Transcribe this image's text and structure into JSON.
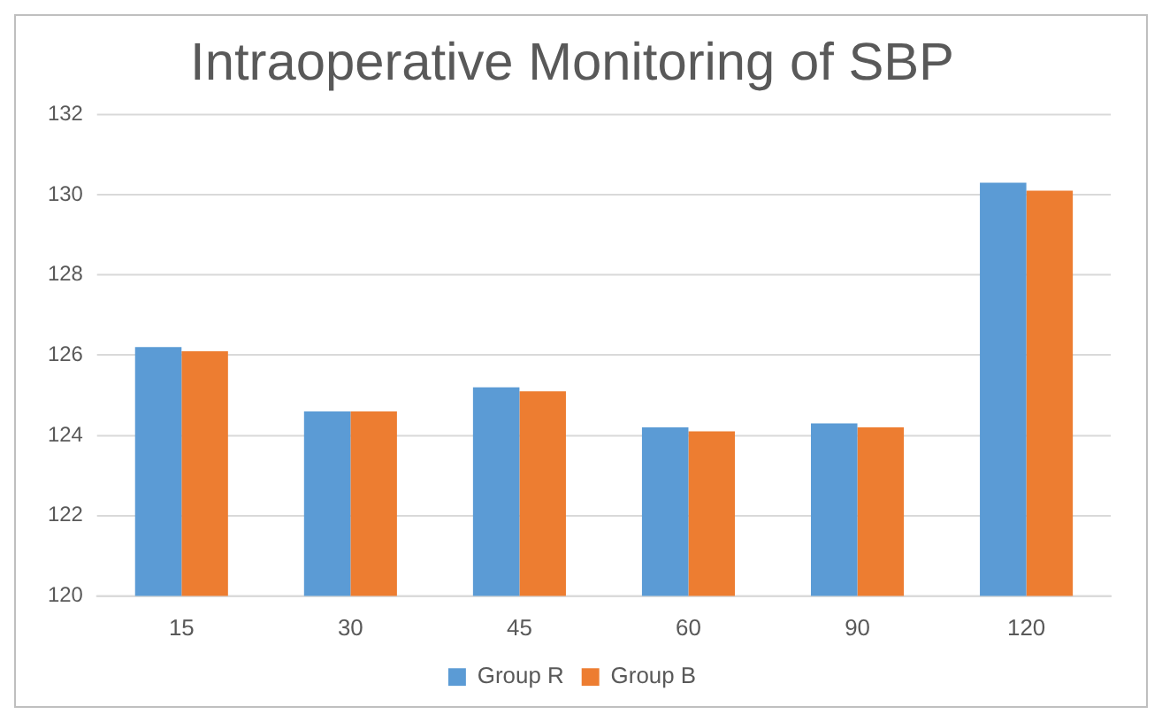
{
  "chart_data": {
    "type": "bar",
    "title": "Intraoperative Monitoring of SBP",
    "categories": [
      "15",
      "30",
      "45",
      "60",
      "90",
      "120"
    ],
    "series": [
      {
        "name": "Group R",
        "color": "#5b9bd5",
        "values": [
          126.2,
          124.6,
          125.2,
          124.2,
          124.3,
          130.3
        ]
      },
      {
        "name": "Group B",
        "color": "#ed7d31",
        "values": [
          126.1,
          124.6,
          125.1,
          124.1,
          124.2,
          130.1
        ]
      }
    ],
    "ylim": [
      120,
      132
    ],
    "yticks": [
      120,
      122,
      124,
      126,
      128,
      130,
      132
    ],
    "grid": "y",
    "legend": "bottom"
  }
}
